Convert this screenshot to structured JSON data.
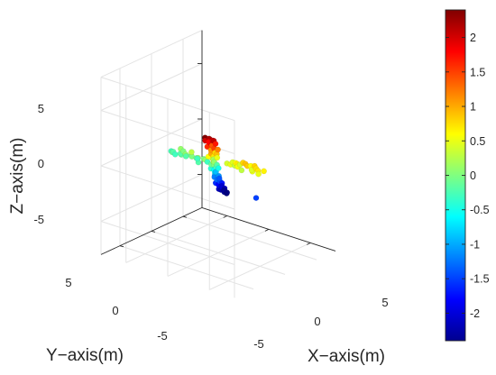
{
  "chart_data": {
    "type": "scatter",
    "projection": "3d",
    "title": "",
    "xlabel": "X−axis(m)",
    "ylabel": "Y−axis(m)",
    "zlabel": "Z−axis(m)",
    "xlim": [
      -8,
      8
    ],
    "ylim": [
      -8,
      8
    ],
    "zlim": [
      -8,
      8
    ],
    "xticks": [
      -5,
      0,
      5
    ],
    "xtick_labels": [
      "-5",
      "0",
      "5"
    ],
    "yticks": [
      -5,
      0,
      5
    ],
    "ytick_labels": [
      "-5",
      "0",
      "5"
    ],
    "zticks": [
      -5,
      0,
      5
    ],
    "ztick_labels": [
      "-5",
      "0",
      "5"
    ],
    "grid": true,
    "colormap": "jet",
    "color_variable": "z",
    "colorbar": {
      "position": "right",
      "range": [
        -2.4,
        2.4
      ],
      "ticks": [
        2,
        1.5,
        1,
        0.5,
        0,
        -0.5,
        -1,
        -1.5,
        -2
      ],
      "tick_labels": [
        "2",
        "1.5",
        "1",
        "0.5",
        "0",
        "-0.5",
        "-1",
        "-1.5",
        "-2"
      ]
    },
    "points": [
      [
        -0.9,
        0.9,
        2.4
      ],
      [
        -0.5,
        0.7,
        2.3
      ],
      [
        -0.8,
        0.4,
        2.2
      ],
      [
        -0.3,
        0.3,
        2.1
      ],
      [
        -1.1,
        0.6,
        2.0
      ],
      [
        -0.6,
        0.1,
        2.0
      ],
      [
        -0.2,
        0.8,
        1.9
      ],
      [
        -1.0,
        0.2,
        1.8
      ],
      [
        -0.4,
        -0.1,
        1.7
      ],
      [
        -0.7,
        0.8,
        1.6
      ],
      [
        -0.1,
        0.5,
        1.5
      ],
      [
        -0.9,
        -0.2,
        1.4
      ],
      [
        -0.5,
        0.4,
        1.3
      ],
      [
        -0.2,
        -0.2,
        1.2
      ],
      [
        -0.8,
        0.1,
        1.1
      ],
      [
        -0.4,
        0.6,
        1.0
      ],
      [
        -0.1,
        0.1,
        0.9
      ],
      [
        -0.6,
        -0.3,
        0.8
      ],
      [
        -0.3,
        0.3,
        0.7
      ],
      [
        -0.8,
        0.5,
        0.6
      ],
      [
        -0.2,
        -0.1,
        0.5
      ],
      [
        -0.5,
        0.2,
        0.4
      ],
      [
        -0.1,
        0.6,
        0.3
      ],
      [
        -0.7,
        -0.2,
        0.2
      ],
      [
        -0.4,
        0.1,
        0.1
      ],
      [
        -0.2,
        0.4,
        0.0
      ],
      [
        -0.6,
        0.3,
        -0.1
      ],
      [
        -0.3,
        -0.2,
        -0.2
      ],
      [
        -0.1,
        0.2,
        -0.3
      ],
      [
        -0.5,
        0.5,
        -0.4
      ],
      [
        -0.2,
        -0.3,
        -0.5
      ],
      [
        -0.4,
        0.1,
        -0.6
      ],
      [
        -0.1,
        0.4,
        -0.7
      ],
      [
        -0.3,
        0.0,
        -0.8
      ],
      [
        -0.5,
        -0.3,
        -0.9
      ],
      [
        -0.2,
        0.3,
        -1.0
      ],
      [
        0.0,
        -0.1,
        -1.1
      ],
      [
        -0.3,
        0.2,
        -1.2
      ],
      [
        0.1,
        0.3,
        -1.3
      ],
      [
        -0.1,
        -0.3,
        -1.4
      ],
      [
        0.2,
        0.0,
        -1.5
      ],
      [
        0.0,
        0.4,
        -1.6
      ],
      [
        0.3,
        -0.2,
        -1.7
      ],
      [
        0.1,
        0.1,
        -1.8
      ],
      [
        0.4,
        0.2,
        -1.9
      ],
      [
        0.2,
        -0.3,
        -2.0
      ],
      [
        0.5,
        0.0,
        -2.0
      ],
      [
        0.3,
        0.3,
        -2.1
      ],
      [
        0.6,
        -0.2,
        -2.1
      ],
      [
        0.4,
        0.1,
        -2.2
      ],
      [
        0.7,
        0.0,
        -2.2
      ],
      [
        0.5,
        -0.3,
        -2.3
      ],
      [
        0.8,
        0.1,
        -2.3
      ],
      [
        0.9,
        -0.2,
        -2.4
      ],
      [
        1.0,
        0.0,
        -2.4
      ],
      [
        3.4,
        0.2,
        0.9
      ],
      [
        2.9,
        -0.1,
        0.8
      ],
      [
        3.8,
        0.4,
        0.85
      ],
      [
        2.5,
        0.3,
        0.7
      ],
      [
        4.2,
        -0.2,
        0.8
      ],
      [
        2.1,
        0.0,
        0.6
      ],
      [
        4.6,
        0.1,
        0.75
      ],
      [
        1.8,
        0.4,
        0.5
      ],
      [
        5.0,
        0.3,
        0.7
      ],
      [
        1.5,
        -0.3,
        0.45
      ],
      [
        5.4,
        -0.1,
        0.65
      ],
      [
        1.2,
        0.2,
        0.4
      ],
      [
        2.7,
        0.5,
        0.55
      ],
      [
        3.6,
        -0.4,
        0.6
      ],
      [
        4.4,
        0.4,
        0.5
      ],
      [
        2.3,
        -0.4,
        0.4
      ],
      [
        3.1,
        0.4,
        0.3
      ],
      [
        4.0,
        0.0,
        0.45
      ],
      [
        5.2,
        0.5,
        0.5
      ],
      [
        1.9,
        -0.1,
        0.3
      ],
      [
        -1.4,
        0.2,
        0.1
      ],
      [
        -1.8,
        -0.1,
        0.0
      ],
      [
        -2.2,
        0.3,
        0.1
      ],
      [
        -2.6,
        0.0,
        -0.1
      ],
      [
        -3.0,
        0.2,
        0.0
      ],
      [
        -3.4,
        -0.2,
        -0.1
      ],
      [
        -3.8,
        0.1,
        -0.2
      ],
      [
        -4.2,
        0.3,
        -0.1
      ],
      [
        -4.6,
        -0.1,
        -0.2
      ],
      [
        -5.0,
        0.2,
        -0.3
      ],
      [
        -5.4,
        0.0,
        -0.2
      ],
      [
        -5.8,
        -0.2,
        -0.3
      ],
      [
        -2.0,
        0.5,
        -0.2
      ],
      [
        -2.8,
        -0.4,
        -0.3
      ],
      [
        -3.6,
        0.4,
        0.1
      ],
      [
        -4.4,
        -0.3,
        0.0
      ],
      [
        -5.2,
        0.4,
        -0.1
      ],
      [
        -1.6,
        -0.4,
        -0.3
      ],
      [
        -3.2,
        0.0,
        0.3
      ],
      [
        -4.8,
        -0.4,
        0.1
      ],
      [
        5.3,
        1.0,
        -1.5
      ]
    ]
  }
}
